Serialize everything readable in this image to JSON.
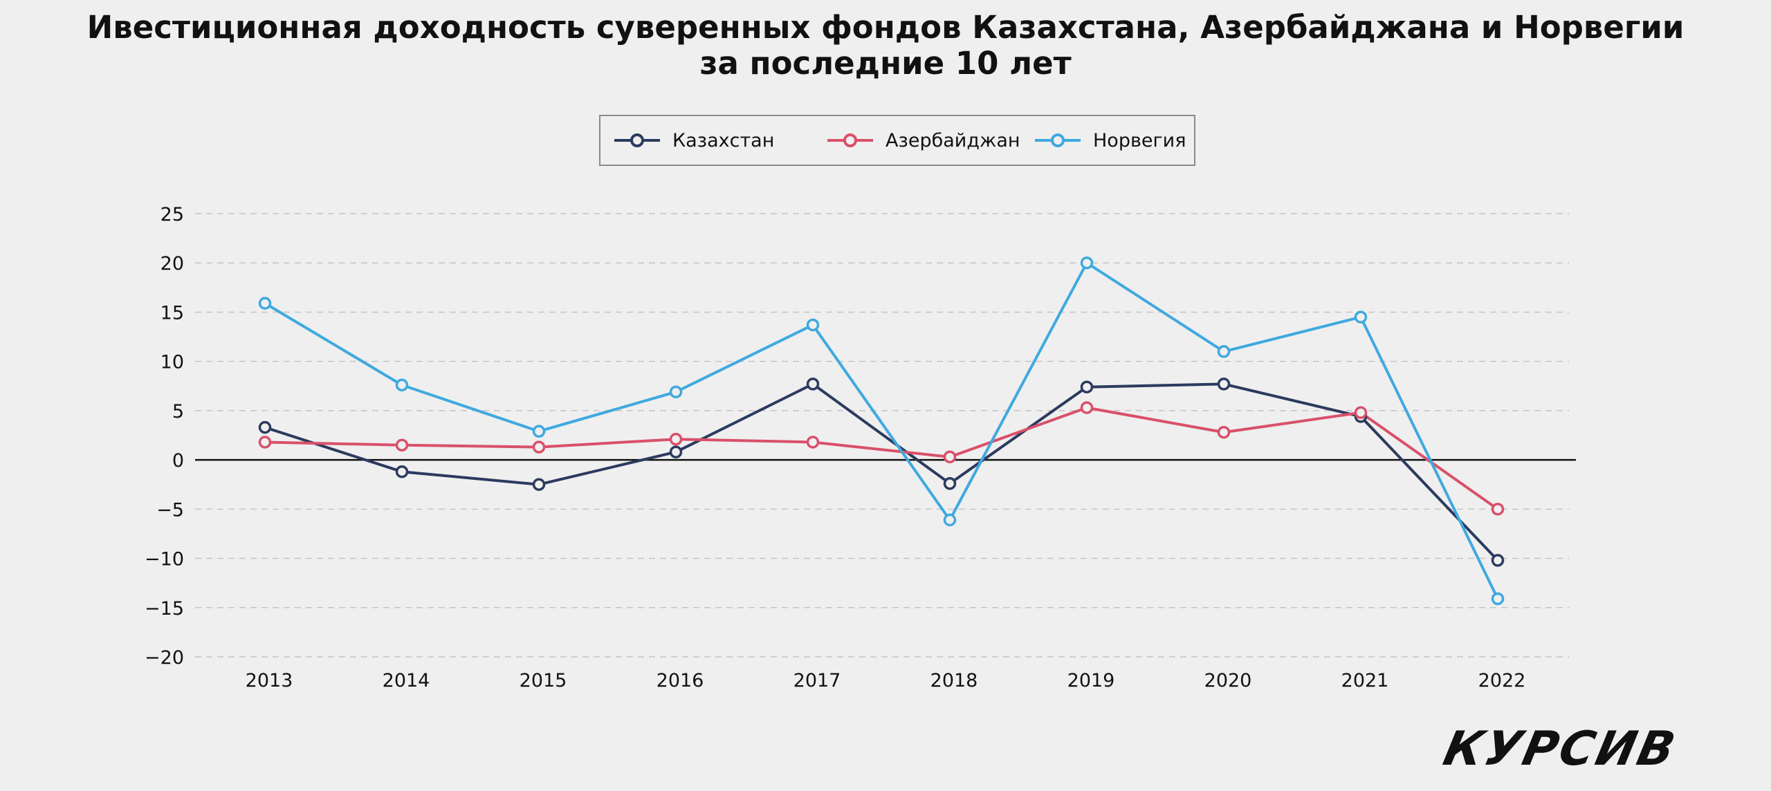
{
  "chart_data": {
    "type": "line",
    "title": "Ивестиционная доходность суверенных фондов Казахстана, Азербайджана и Норвегии",
    "subtitle": "за последние 10 лет",
    "xlabel": "",
    "ylabel": "",
    "categories": [
      "2013",
      "2014",
      "2015",
      "2016",
      "2017",
      "2018",
      "2019",
      "2020",
      "2021",
      "2022"
    ],
    "ylim": [
      -20,
      25
    ],
    "yticks": [
      "25",
      "20",
      "15",
      "10",
      "5",
      "0",
      "−5",
      "−10",
      "−15",
      "−20"
    ],
    "ytick_values": [
      25,
      20,
      15,
      10,
      5,
      0,
      -5,
      -10,
      -15,
      -20
    ],
    "grid": "horizontal dashed",
    "legend_position": "top-center",
    "series": [
      {
        "name": "Казахстан",
        "color": "#2c3a5e",
        "values": [
          3.3,
          -1.2,
          -2.5,
          0.8,
          7.7,
          -2.4,
          7.4,
          7.7,
          4.4,
          -10.2
        ]
      },
      {
        "name": "Азербайджан",
        "color": "#d9506a",
        "values": [
          1.8,
          1.5,
          1.3,
          2.1,
          1.8,
          0.3,
          5.3,
          2.8,
          4.8,
          -5.0
        ]
      },
      {
        "name": "Норвегия",
        "color": "#3fa9e0",
        "values": [
          15.9,
          7.6,
          2.9,
          6.9,
          13.7,
          -6.1,
          20.0,
          11.0,
          14.5,
          -14.1
        ]
      }
    ]
  },
  "brand": {
    "logo_text": "КУРСИВ"
  }
}
